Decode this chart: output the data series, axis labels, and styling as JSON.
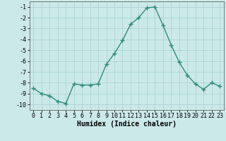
{
  "x": [
    0,
    1,
    2,
    3,
    4,
    5,
    6,
    7,
    8,
    9,
    10,
    11,
    12,
    13,
    14,
    15,
    16,
    17,
    18,
    19,
    20,
    21,
    22,
    23
  ],
  "y": [
    -8.5,
    -9.0,
    -9.2,
    -9.7,
    -9.9,
    -8.1,
    -8.2,
    -8.2,
    -8.1,
    -6.3,
    -5.3,
    -4.1,
    -2.6,
    -2.0,
    -1.1,
    -1.0,
    -2.7,
    -4.5,
    -6.1,
    -7.3,
    -8.1,
    -8.6,
    -8.0,
    -8.3
  ],
  "line_color": "#2e8b7a",
  "marker": "+",
  "markersize": 4,
  "markeredgewidth": 1.0,
  "linewidth": 1.0,
  "bg_color": "#cce9e9",
  "grid_color": "#aad4d4",
  "xlabel": "Humidex (Indice chaleur)",
  "xlabel_fontsize": 7,
  "tick_fontsize": 6,
  "xlim": [
    -0.5,
    23.5
  ],
  "ylim": [
    -10.5,
    -0.5
  ],
  "yticks": [
    -1,
    -2,
    -3,
    -4,
    -5,
    -6,
    -7,
    -8,
    -9,
    -10
  ],
  "xticks": [
    0,
    1,
    2,
    3,
    4,
    5,
    6,
    7,
    8,
    9,
    10,
    11,
    12,
    13,
    14,
    15,
    16,
    17,
    18,
    19,
    20,
    21,
    22,
    23
  ]
}
